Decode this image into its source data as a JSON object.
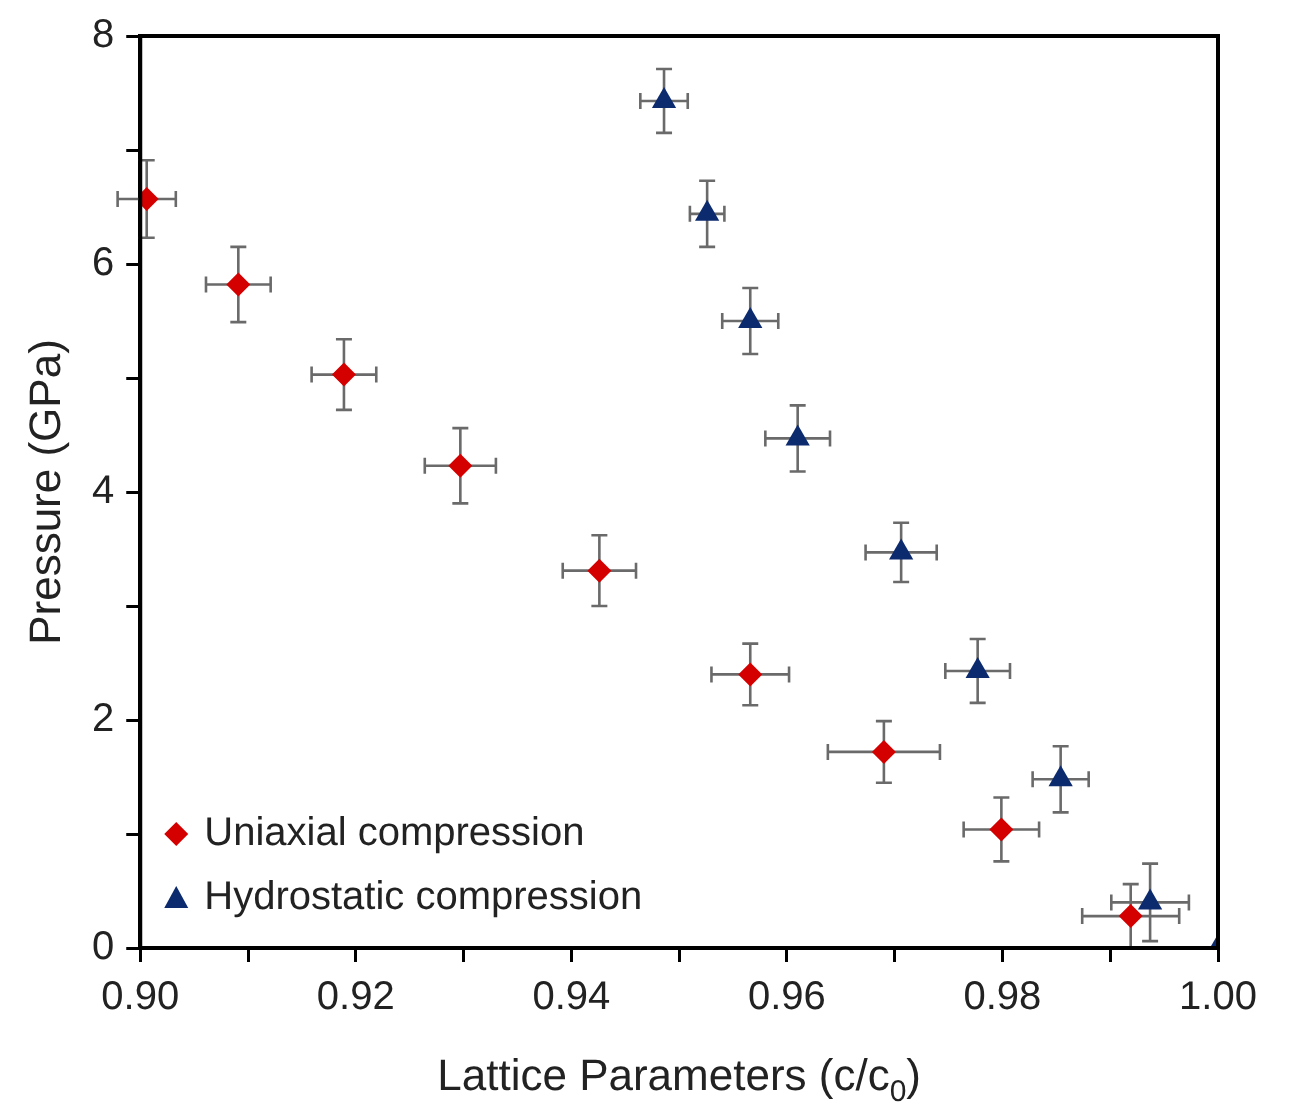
{
  "chart_data": {
    "type": "scatter",
    "xlabel": "Lattice Parameters (c/c$_{0}$)",
    "ylabel": "Pressure (GPa)",
    "xlim": [
      0.9,
      1.0
    ],
    "ylim": [
      0,
      8
    ],
    "xticks": [
      {
        "value": 0.9,
        "label": "0.90"
      },
      {
        "value": 0.91,
        "label": null
      },
      {
        "value": 0.92,
        "label": "0.92"
      },
      {
        "value": 0.93,
        "label": null
      },
      {
        "value": 0.94,
        "label": "0.94"
      },
      {
        "value": 0.95,
        "label": null
      },
      {
        "value": 0.96,
        "label": "0.96"
      },
      {
        "value": 0.97,
        "label": null
      },
      {
        "value": 0.98,
        "label": "0.98"
      },
      {
        "value": 0.99,
        "label": null
      },
      {
        "value": 1.0,
        "label": "1.00"
      }
    ],
    "yticks": [
      0,
      {
        "value": 1,
        "label": null
      },
      2,
      {
        "value": 3,
        "label": null
      },
      4,
      {
        "value": 5,
        "label": null
      },
      6,
      {
        "value": 7,
        "label": null
      },
      8
    ],
    "grid": false,
    "legend": "bottom left",
    "series": [
      {
        "name": "Uniaxial compression",
        "color": "#d40000",
        "marker": "diamond",
        "x": [
          0.9006,
          0.9091,
          0.9189,
          0.9297,
          0.9426,
          0.9566,
          0.969,
          0.9799,
          0.9919
        ],
        "values": [
          6.57,
          5.82,
          5.03,
          4.23,
          3.31,
          2.4,
          1.72,
          1.04,
          0.28
        ],
        "errors": [
          0.34,
          0.33,
          0.31,
          0.33,
          0.31,
          0.27,
          0.27,
          0.28,
          0.28
        ],
        "xerrors": [
          0.0027,
          0.003,
          0.003,
          0.0033,
          0.0034,
          0.0036,
          0.0052,
          0.0035,
          0.0045
        ]
      },
      {
        "name": "Hydrostatic compression",
        "color": "#0c2a6e",
        "marker": "triangle",
        "x": [
          0.9486,
          0.9526,
          0.9566,
          0.961,
          0.9706,
          0.9777,
          0.9854,
          0.9937,
          1.0
        ],
        "values": [
          7.43,
          6.44,
          5.5,
          4.47,
          3.47,
          2.43,
          1.48,
          0.4,
          0
        ],
        "errors": [
          0.28,
          0.29,
          0.29,
          0.29,
          0.26,
          0.28,
          0.29,
          0.34,
          null
        ],
        "xerrors": [
          0.0022,
          0.0016,
          0.0026,
          0.003,
          0.0033,
          0.003,
          0.0026,
          0.0036,
          null
        ]
      }
    ]
  }
}
